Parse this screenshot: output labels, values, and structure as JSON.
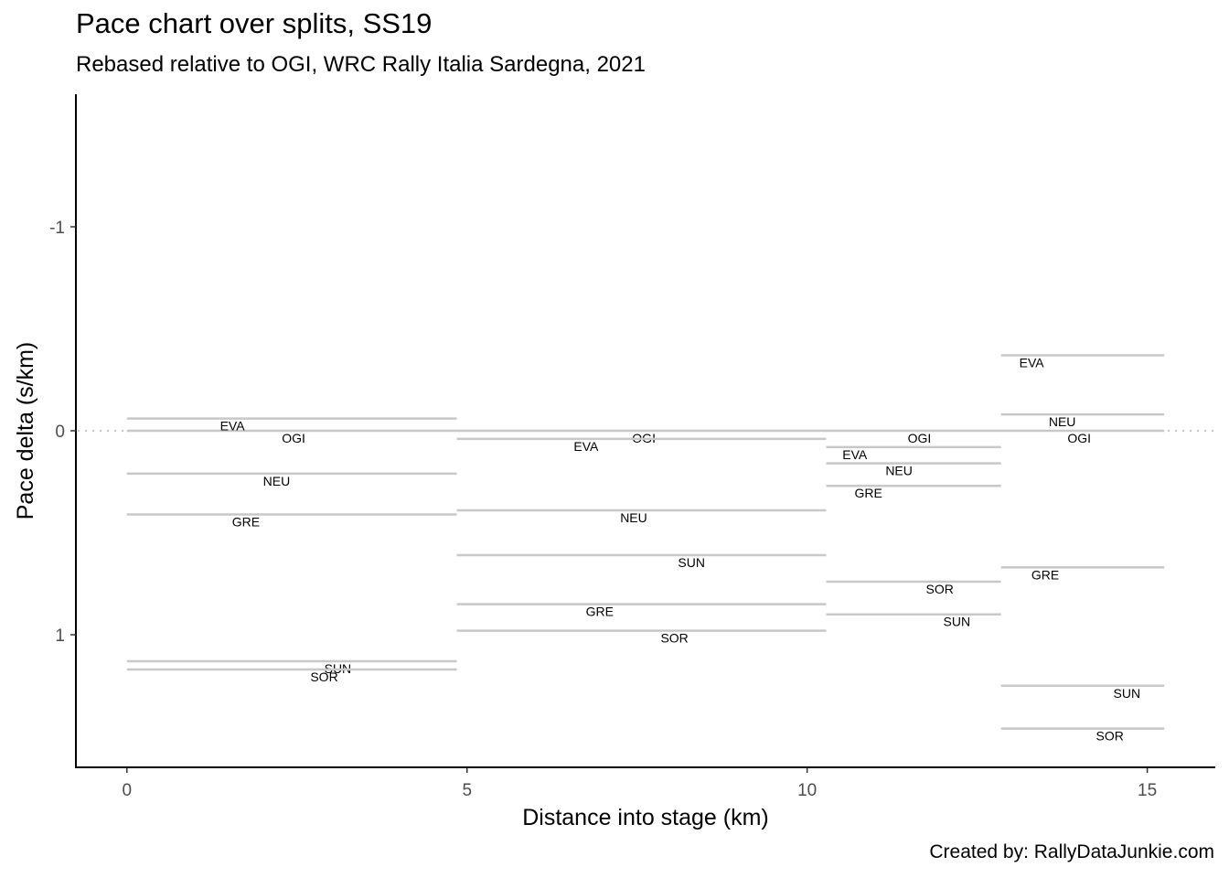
{
  "title": "Pace chart over splits, SS19",
  "subtitle": "Rebased relative to OGI, WRC Rally Italia Sardegna, 2021",
  "caption": "Created by: RallyDataJunkie.com",
  "chart_data": {
    "type": "line",
    "xlabel": "Distance into stage (km)",
    "ylabel": "Pace delta (s/km)",
    "xlim": [
      -0.75,
      16
    ],
    "ylim": [
      -1.65,
      1.65
    ],
    "y_reversed": true,
    "grid": false,
    "legend": "none",
    "colors": {
      "segment": "#c8c8c8",
      "reference": "#c8c8c8"
    },
    "x_ticks": [
      0,
      5,
      10,
      15
    ],
    "x_tick_labels": [
      "0",
      "5",
      "10",
      "15"
    ],
    "y_ticks": [
      -1,
      0,
      1
    ],
    "y_tick_labels": [
      "-1",
      "0",
      "1"
    ],
    "reference_line": {
      "y": 0,
      "style": "dotted"
    },
    "splits": [
      {
        "start": 0,
        "end": 4.85
      },
      {
        "start": 4.85,
        "end": 10.28
      },
      {
        "start": 10.28,
        "end": 12.85
      },
      {
        "start": 12.85,
        "end": 15.25
      }
    ],
    "series": [
      {
        "name": "OGI",
        "values": [
          0,
          0,
          0,
          0
        ],
        "label_x": [
          2.45,
          7.6,
          11.65,
          14.0
        ]
      },
      {
        "name": "EVA",
        "values": [
          -0.06,
          0.04,
          0.08,
          -0.37
        ],
        "label_x": [
          1.55,
          6.75,
          10.7,
          13.3
        ]
      },
      {
        "name": "NEU",
        "values": [
          0.21,
          0.39,
          0.16,
          -0.08
        ],
        "label_x": [
          2.2,
          7.45,
          11.35,
          13.75
        ]
      },
      {
        "name": "GRE",
        "values": [
          0.41,
          0.85,
          0.27,
          0.67
        ],
        "label_x": [
          1.75,
          6.95,
          10.9,
          13.5
        ]
      },
      {
        "name": "SUN",
        "values": [
          1.13,
          0.61,
          0.9,
          1.25
        ],
        "label_x": [
          3.1,
          8.3,
          12.2,
          14.7
        ]
      },
      {
        "name": "SOR",
        "values": [
          1.17,
          0.98,
          0.74,
          1.46
        ],
        "label_x": [
          2.9,
          8.05,
          11.95,
          14.45
        ]
      }
    ]
  }
}
